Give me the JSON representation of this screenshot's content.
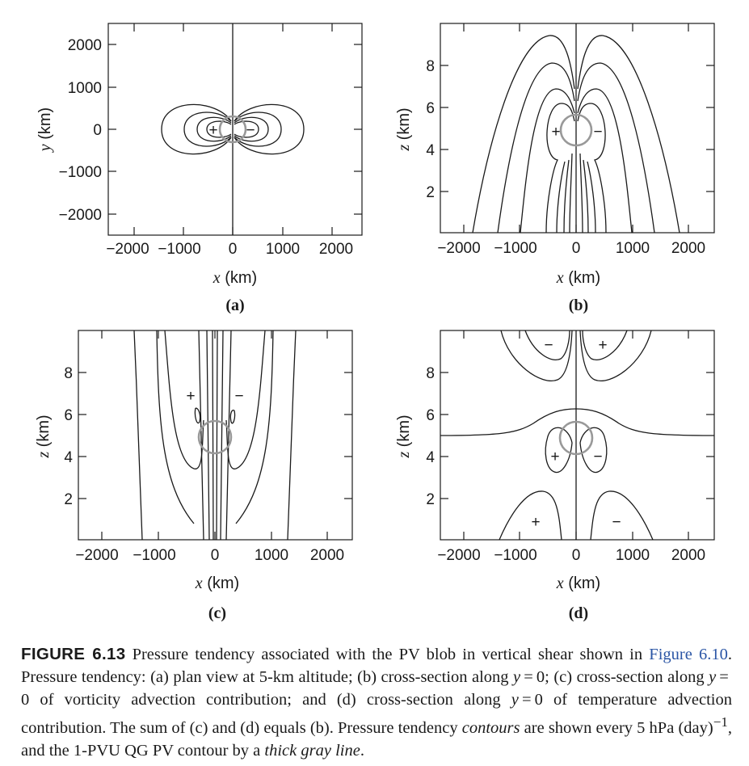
{
  "figure": {
    "panels": [
      {
        "id": "a",
        "label": "(a)",
        "xlabel_var": "x",
        "xlabel_unit": " (km)",
        "ylabel_var": "y",
        "ylabel_unit": " (km)",
        "xticks": [
          "−2000",
          "−1000",
          "0",
          "1000",
          "2000"
        ],
        "yticks": [
          "2000",
          "1000",
          "0",
          "−1000",
          "−2000"
        ],
        "signs": [
          "+",
          "−"
        ]
      },
      {
        "id": "b",
        "label": "(b)",
        "xlabel_var": "x",
        "xlabel_unit": " (km)",
        "ylabel_var": "z",
        "ylabel_unit": " (km)",
        "xticks": [
          "−2000",
          "−1000",
          "0",
          "1000",
          "2000"
        ],
        "yticks": [
          "8",
          "6",
          "4",
          "2"
        ],
        "signs": [
          "+",
          "−"
        ]
      },
      {
        "id": "c",
        "label": "(c)",
        "xlabel_var": "x",
        "xlabel_unit": " (km)",
        "ylabel_var": "z",
        "ylabel_unit": " (km)",
        "xticks": [
          "−2000",
          "−1000",
          "0",
          "1000",
          "2000"
        ],
        "yticks": [
          "8",
          "6",
          "4",
          "2"
        ],
        "signs": [
          "+",
          "−"
        ]
      },
      {
        "id": "d",
        "label": "(d)",
        "xlabel_var": "x",
        "xlabel_unit": " (km)",
        "ylabel_var": "z",
        "ylabel_unit": " (km)",
        "xticks": [
          "−2000",
          "−1000",
          "0",
          "1000",
          "2000"
        ],
        "yticks": [
          "8",
          "6",
          "4",
          "2"
        ],
        "signs": [
          "−",
          "+",
          "+",
          "−",
          "+",
          "−"
        ]
      }
    ]
  },
  "caption": {
    "number": "FIGURE 6.13",
    "text1": " Pressure tendency associated with the PV blob in vertical shear shown in ",
    "ref": "Figure 6.10",
    "text2": ". Pressure tendency: (a) plan view at 5-km altitude; (b) cross-section along ",
    "v1": "y",
    "text3": " = 0; (c) cross-section along ",
    "v2": "y",
    "text4": " = 0 of vorticity advection contribution; and (d) cross-section along ",
    "v3": "y",
    "text5": " = 0 of temperature advection contribution. The sum of (c) and (d) equals (b). Pressure tendency ",
    "em1": "contours",
    "text6": " are shown every 5 hPa (day)",
    "sup": "−1",
    "text7": ", and the 1-PVU QG PV contour by a ",
    "em2": "thick gray line",
    "text8": "."
  }
}
